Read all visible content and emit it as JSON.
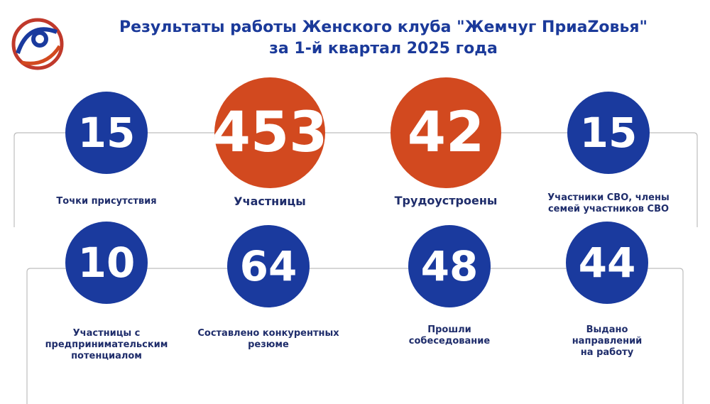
{
  "header": {
    "title_lines": [
      "Результаты работы Женского клуба  \"Жемчуг ПриаZовья\"",
      "за 1-й квартал 2025 года"
    ]
  },
  "stats": [
    {
      "value": 15,
      "color": "#1a3a9e",
      "label_lines": [
        "Точки присутствия"
      ]
    },
    {
      "value": 453,
      "color": "#d2491f",
      "label_lines": [
        "Участницы"
      ]
    },
    {
      "value": 42,
      "color": "#d2491f",
      "label_lines": [
        "Трудоустроены"
      ]
    },
    {
      "value": 15,
      "color": "#1a3a9e",
      "label_lines": [
        "Участники СВО, члены",
        "семей участников СВО"
      ]
    },
    {
      "value": 10,
      "color": "#1a3a9e",
      "label_lines": [
        "Участницы с",
        "предпринимательским",
        "потенциалом"
      ]
    },
    {
      "value": 64,
      "color": "#1a3a9e",
      "label_lines": [
        "Составлено конкурентных",
        "резюме"
      ]
    },
    {
      "value": 48,
      "color": "#1a3a9e",
      "label_lines": [
        "Прошли",
        "собеседование"
      ]
    },
    {
      "value": 44,
      "color": "#1a3a9e",
      "label_lines": [
        "Выдано",
        "направлений",
        "на работу"
      ]
    }
  ]
}
